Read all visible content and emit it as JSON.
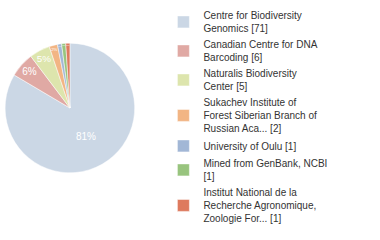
{
  "chart_data": {
    "type": "pie",
    "categories": [
      "Centre for Biodiversity Genomics [71]",
      "Canadian Centre for DNA Barcoding [6]",
      "Naturalis Biodiversity Center [5]",
      "Sukachev Institute of Forest Siberian Branch of Russian Aca... [2]",
      "University of Oulu [1]",
      "Mined from GenBank, NCBI [1]",
      "Institut National de la Recherche Agronomique, Zoologie For... [1]"
    ],
    "values": [
      81,
      6,
      5,
      2,
      1,
      1,
      1
    ],
    "value_labels": [
      "81%",
      "6%",
      "5%",
      "2%",
      "1%",
      "1%",
      "1%"
    ],
    "colors": [
      "#cbd7e5",
      "#e0a9a4",
      "#dde5ad",
      "#f2b584",
      "#a2b7d6",
      "#98c47e",
      "#de7a5e"
    ],
    "data_labels": true,
    "legend": "right"
  }
}
